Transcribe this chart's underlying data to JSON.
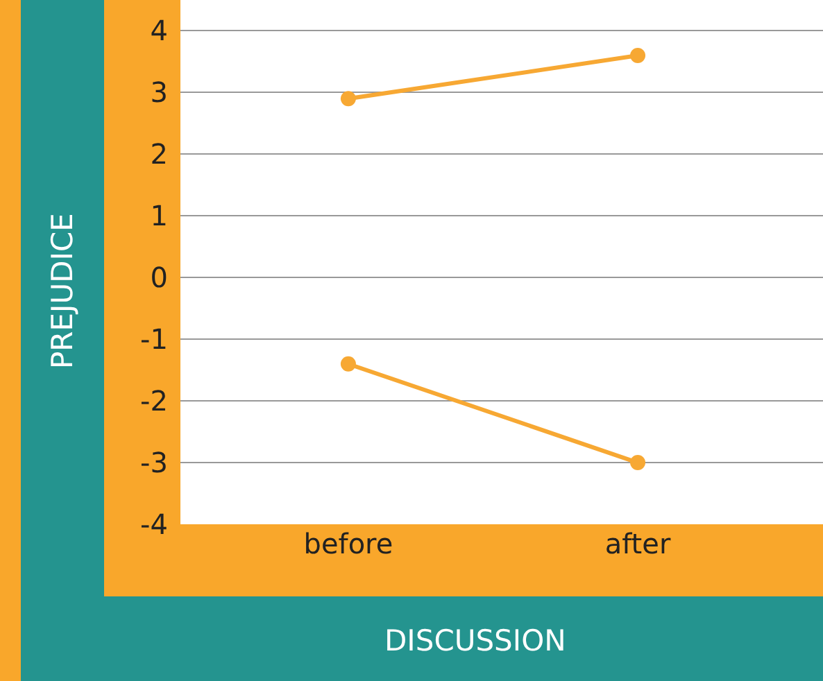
{
  "chart_data": {
    "type": "line",
    "xlabel": "DISCUSSION",
    "ylabel": "PREJUDICE",
    "categories": [
      "before",
      "after"
    ],
    "series": [
      {
        "color": "#f7a833",
        "values": [
          2.9,
          3.6
        ]
      },
      {
        "color": "#f7a833",
        "values": [
          -1.4,
          -3.0
        ]
      }
    ],
    "ylim": [
      -4,
      4.5
    ],
    "yticks": [
      -4,
      -3,
      -2,
      -1,
      0,
      1,
      2,
      3,
      4
    ],
    "grid": "y",
    "marker": "circle",
    "line_style": "solid"
  }
}
